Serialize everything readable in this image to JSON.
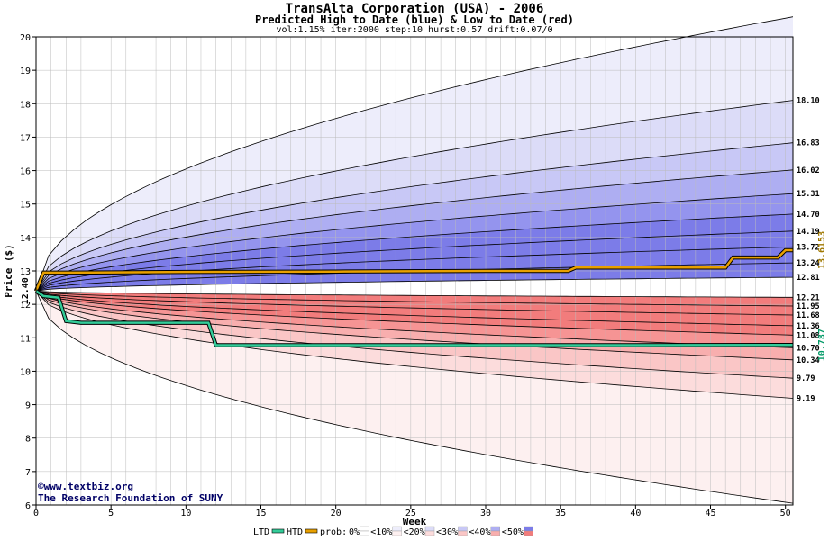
{
  "header": {
    "title": "TransAlta Corporation (USA) - 2006",
    "subtitle": "Predicted High to Date (blue) &  Low to Date (red)",
    "params": "vol:1.15% iter:2000 step:10 hurst:0.57 drift:0.07/0"
  },
  "credit": {
    "line1": "www.textbiz.org",
    "line2": "The Research Foundation of SUNY",
    "copyright_symbol": "©"
  },
  "colors": {
    "htd_line": "#e8a000",
    "ltd_line": "#33cc99",
    "htd_label": "#a07800",
    "ltd_label": "#009966",
    "blue_bands": [
      "#ededfb",
      "#dcdcf8",
      "#c8c8f6",
      "#aeaef2",
      "#9494ee",
      "#7c7ce8"
    ],
    "red_bands": [
      "#fdf0f0",
      "#fcdcdc",
      "#fac6c6",
      "#f8aeae",
      "#f69494",
      "#f27c7c"
    ]
  },
  "chart_data": {
    "type": "area",
    "title": "TransAlta Corporation (USA) - 2006",
    "xlabel": "Week",
    "ylabel": "Price ($)",
    "xlim": [
      0,
      50.5
    ],
    "ylim": [
      6,
      20
    ],
    "xticks": [
      0,
      5,
      10,
      15,
      20,
      25,
      30,
      35,
      40,
      45,
      50
    ],
    "yticks": [
      6,
      7,
      8,
      9,
      10,
      11,
      12,
      13,
      14,
      15,
      16,
      17,
      18,
      19,
      20
    ],
    "grid": true,
    "start_price": "12.40",
    "high_band_ends": [
      "18.10",
      "16.83",
      "16.02",
      "15.31",
      "14.70",
      "14.19",
      "13.72",
      "13.24",
      "12.81"
    ],
    "low_band_ends": [
      "12.21",
      "11.95",
      "11.68",
      "11.36",
      "11.08",
      "10.70",
      "10.34",
      "9.79",
      "9.19"
    ],
    "high_band_values": [
      18.1,
      16.83,
      16.02,
      15.31,
      14.7,
      14.19,
      13.72,
      13.24,
      12.81
    ],
    "low_band_values": [
      12.21,
      11.95,
      11.68,
      11.36,
      11.08,
      10.7,
      10.34,
      9.79,
      9.19
    ],
    "high_extreme_end": 20.6,
    "low_extreme_end": 6.05,
    "htd_final": "13.6153",
    "ltd_final": "10.787",
    "htd_series": {
      "name": "HTD",
      "x": [
        0,
        0.5,
        2,
        10,
        20,
        30,
        35.5,
        36,
        45,
        46,
        46.5,
        49.5,
        50,
        50.5
      ],
      "y": [
        12.4,
        12.95,
        12.95,
        12.97,
        12.98,
        13.0,
        13.0,
        13.1,
        13.1,
        13.1,
        13.4,
        13.4,
        13.62,
        13.62
      ]
    },
    "ltd_series": {
      "name": "LTD",
      "x": [
        0,
        0.5,
        1.5,
        2,
        3,
        5,
        10,
        11.5,
        12,
        20,
        30,
        40,
        50,
        50.5
      ],
      "y": [
        12.4,
        12.25,
        12.2,
        11.5,
        11.45,
        11.45,
        11.45,
        11.45,
        10.78,
        10.78,
        10.78,
        10.78,
        10.787,
        10.787
      ]
    },
    "legend": {
      "position": "bottom",
      "ltd_label": "LTD",
      "htd_label": "HTD",
      "prob_label": "prob:",
      "items": [
        "0%",
        "<10%",
        "<20%",
        "<30%",
        "<40%",
        "<50%"
      ]
    }
  }
}
